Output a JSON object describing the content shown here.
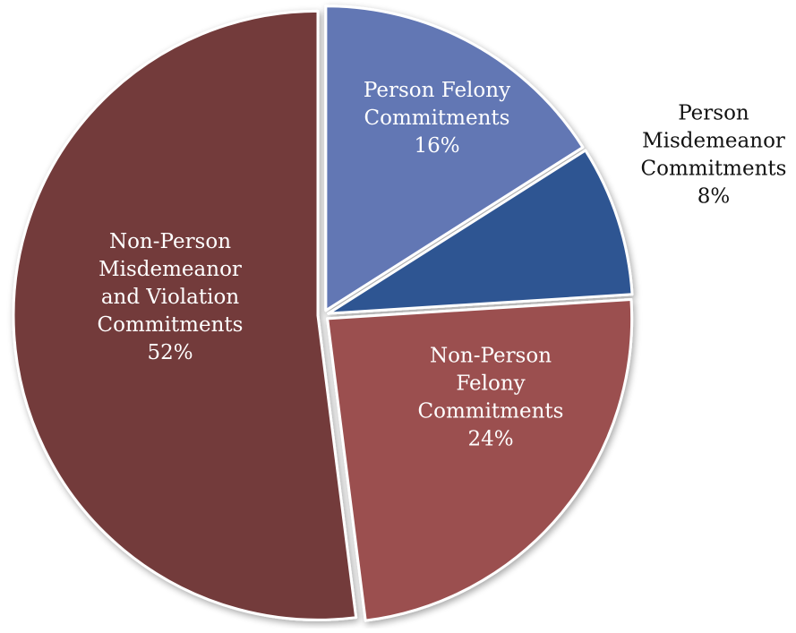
{
  "chart_data": {
    "type": "pie",
    "start": "12 o'clock",
    "direction": "clockwise",
    "slices": [
      {
        "name": "Person Felony Commitments",
        "value": 16,
        "label_lines": [
          "Person Felony",
          "Commitments",
          "16%"
        ],
        "color": "#6277B4",
        "label_color": "#ffffff"
      },
      {
        "name": "Person Misdemeanor Commitments",
        "value": 8,
        "label_lines": [
          "Person",
          "Misdemeanor",
          "Commitments",
          "8%"
        ],
        "color": "#2E5492",
        "label_color": "#111111"
      },
      {
        "name": "Non-Person Felony Commitments",
        "value": 24,
        "label_lines": [
          "Non-Person",
          "Felony",
          "Commitments",
          "24%"
        ],
        "color": "#9B5050",
        "label_color": "#ffffff"
      },
      {
        "name": "Non-Person Misdemeanor and Violation Commitments",
        "value": 52,
        "label_lines": [
          "Non-Person",
          "Misdemeanor",
          "and Violation",
          "Commitments",
          "52%"
        ],
        "color": "#733B3B",
        "label_color": "#ffffff"
      }
    ],
    "colors": {
      "slice_border": "#ffffff"
    }
  }
}
